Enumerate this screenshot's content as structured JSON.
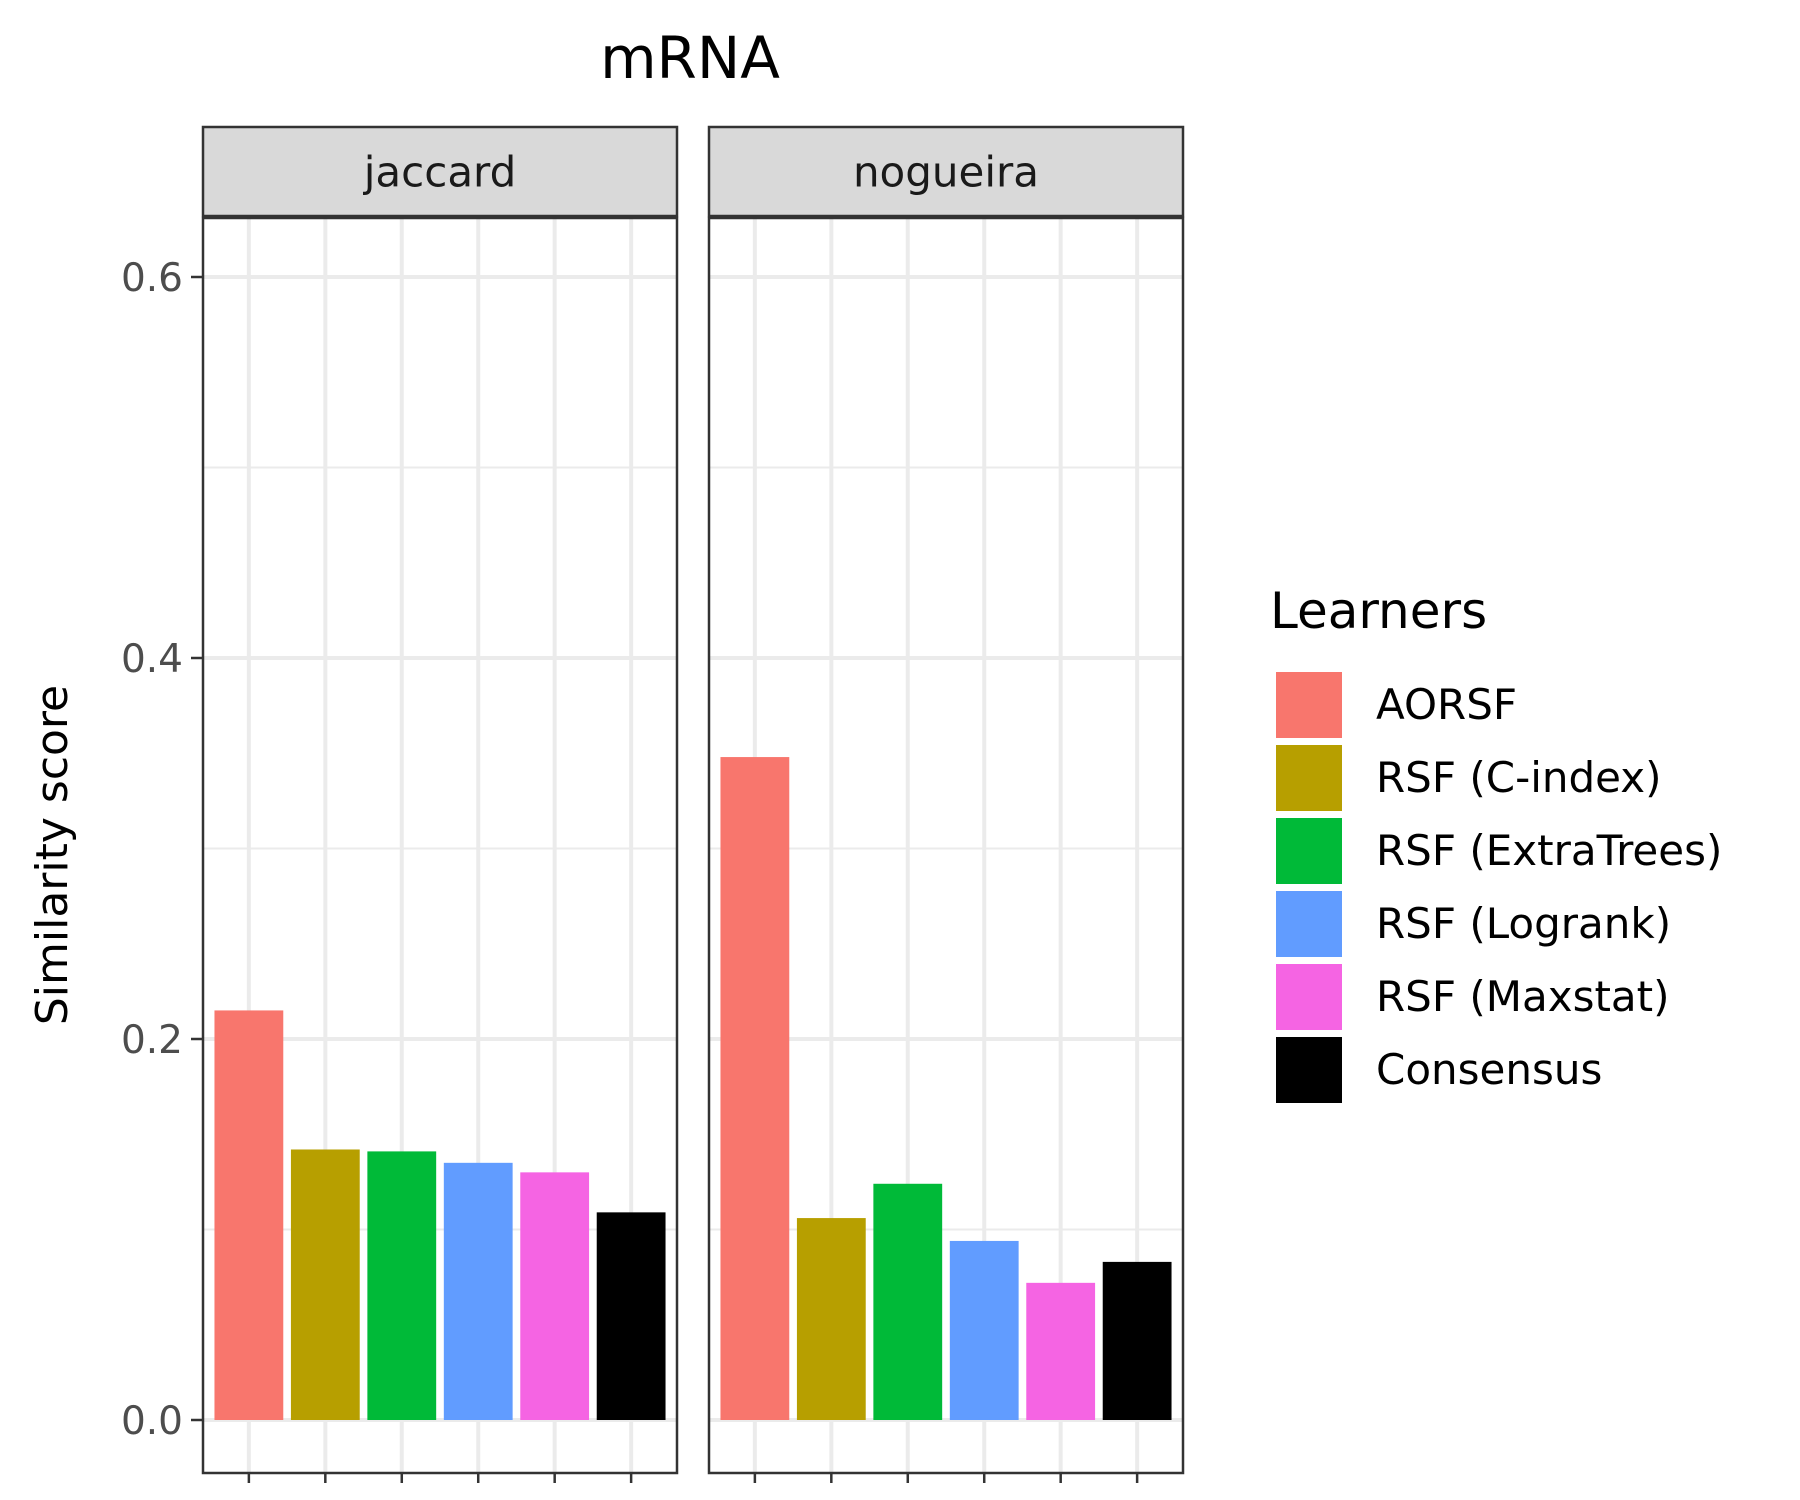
{
  "chart_data": {
    "type": "bar",
    "title": "mRNA",
    "ylabel": "Similarity score",
    "xlabel": "",
    "ylim": [
      -0.03,
      0.63
    ],
    "yticks": [
      0.0,
      0.2,
      0.4,
      0.6
    ],
    "ytick_labels": [
      "0.0",
      "0.2",
      "0.4",
      "0.6"
    ],
    "grid": true,
    "legend_position": "right",
    "legend": {
      "title": "Learners",
      "entries": [
        {
          "name": "AORSF",
          "color": "#F8766D"
        },
        {
          "name": "RSF (C-index)",
          "color": "#B79F00"
        },
        {
          "name": "RSF (ExtraTrees)",
          "color": "#00BA38"
        },
        {
          "name": "RSF (Logrank)",
          "color": "#619CFF"
        },
        {
          "name": "RSF (Maxstat)",
          "color": "#F564E3"
        },
        {
          "name": "Consensus",
          "color": "#000000"
        }
      ]
    },
    "categories": [
      "AORSF",
      "RSF (C-index)",
      "RSF (ExtraTrees)",
      "RSF (Logrank)",
      "RSF (Maxstat)",
      "Consensus"
    ],
    "panels": [
      {
        "name": "jaccard",
        "values": [
          0.215,
          0.142,
          0.141,
          0.135,
          0.13,
          0.109
        ]
      },
      {
        "name": "nogueira",
        "values": [
          0.348,
          0.106,
          0.124,
          0.094,
          0.072,
          0.083
        ]
      }
    ]
  }
}
